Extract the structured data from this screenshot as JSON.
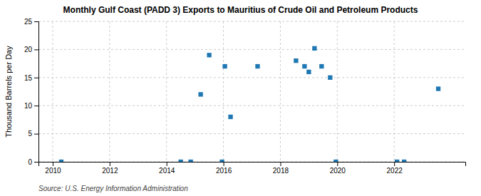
{
  "chart_data": {
    "type": "scatter",
    "title": "Monthly Gulf Coast (PADD 3) Exports to Mauritius of Crude Oil and Petroleum Products",
    "ylabel": "Thousand Barrels per Day",
    "source": "Source: U.S. Energy Information Administration",
    "marker": "square",
    "x": [
      2010.3,
      2014.5,
      2014.85,
      2015.2,
      2015.5,
      2015.95,
      2016.05,
      2016.25,
      2017.2,
      2018.55,
      2018.85,
      2019.0,
      2019.2,
      2019.45,
      2019.75,
      2019.95,
      2022.1,
      2022.35,
      2023.55
    ],
    "values": [
      0.0,
      0.0,
      0.0,
      12.0,
      19.0,
      0.0,
      17.0,
      8.0,
      17.0,
      18.0,
      17.0,
      16.0,
      20.2,
      17.0,
      15.0,
      0.0,
      0.0,
      0.0,
      13.0
    ],
    "xlim": [
      2009.5,
      2024.5
    ],
    "ylim": [
      0,
      25
    ],
    "xticks": [
      2010,
      2012,
      2014,
      2016,
      2018,
      2020,
      2022
    ],
    "yticks": [
      0,
      5,
      10,
      15,
      20,
      25
    ],
    "grid": true
  }
}
